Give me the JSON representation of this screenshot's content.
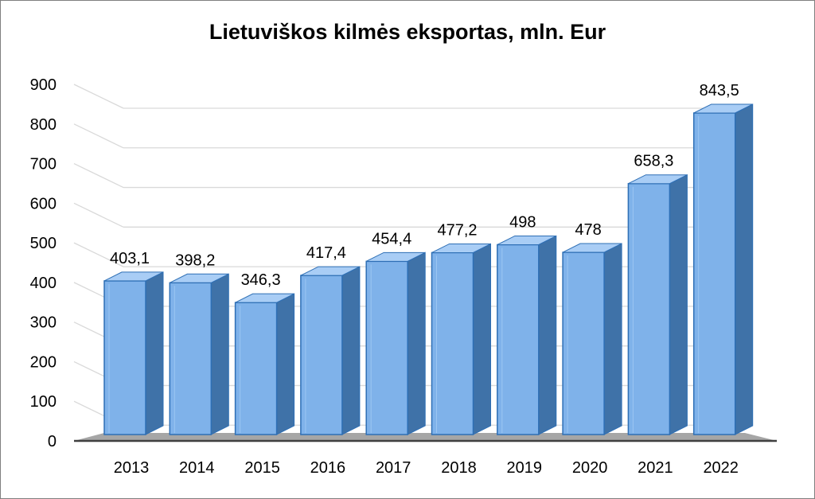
{
  "chart_data": {
    "type": "bar",
    "title": "Lietuviškos kilmės eksportas, mln. Eur",
    "xlabel": "",
    "ylabel": "",
    "categories": [
      "2013",
      "2014",
      "2015",
      "2016",
      "2017",
      "2018",
      "2019",
      "2020",
      "2021",
      "2022"
    ],
    "values": [
      403.1,
      398.2,
      346.3,
      417.4,
      454.4,
      477.2,
      498,
      478,
      658.3,
      843.5
    ],
    "data_labels": [
      "403,1",
      "398,2",
      "346,3",
      "417,4",
      "454,4",
      "477,2",
      "498",
      "478",
      "658,3",
      "843,5"
    ],
    "yticks": [
      "0",
      "100",
      "200",
      "300",
      "400",
      "500",
      "600",
      "700",
      "800",
      "900"
    ],
    "ylim": [
      0,
      900
    ],
    "grid": true,
    "legend": "none",
    "style": "3d-column",
    "colors": {
      "bar_front": "#7fb2ea",
      "bar_side": "#3f72a8",
      "bar_top": "#a9cdf5",
      "bar_edge": "#2e6fb5",
      "floor": "#a6a6a6",
      "grid": "#d9d9d9"
    }
  }
}
